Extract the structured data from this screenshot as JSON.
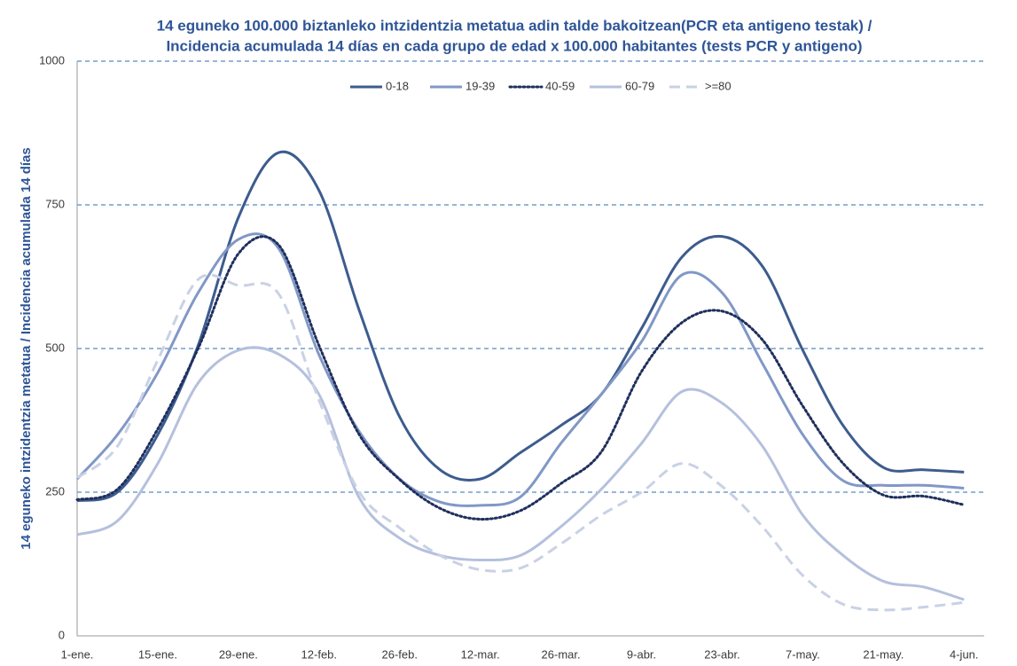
{
  "chart_data": {
    "type": "line",
    "title": "14 eguneko 100.000 biztanleko intzidentzia metatua adin talde bakoitzean(PCR eta antigeno testak) /",
    "subtitle": "Incidencia acumulada 14 días en cada grupo de edad x 100.000 habitantes (tests PCR y antigeno)",
    "y_label": "14 eguneko intzidentzia metatua / Incidencia acumulada 14 días",
    "categories": [
      "1-ene.",
      null,
      "15-ene.",
      null,
      "29-ene.",
      null,
      "12-feb.",
      null,
      "26-feb.",
      null,
      "12-mar.",
      null,
      "26-mar.",
      null,
      "9-abr.",
      null,
      "23-abr.",
      null,
      "7-may.",
      null,
      "21-may.",
      null,
      "4-jun."
    ],
    "series": [
      {
        "name": "0-18",
        "color": "#3d5c8e",
        "style": "solid",
        "values": [
          235,
          250,
          350,
          505,
          728,
          841,
          775,
          566,
          381,
          289,
          273,
          319,
          366,
          420,
          535,
          659,
          695,
          643,
          497,
          366,
          293,
          289,
          285
        ]
      },
      {
        "name": "19-39",
        "color": "#8198c6",
        "style": "solid",
        "values": [
          273,
          350,
          458,
          597,
          690,
          674,
          489,
          355,
          273,
          233,
          227,
          242,
          335,
          420,
          512,
          628,
          597,
          474,
          350,
          270,
          262,
          262,
          257
        ]
      },
      {
        "name": "40-59",
        "color": "#1f2f5c",
        "style": "dotted",
        "values": [
          237,
          255,
          360,
          500,
          665,
          680,
          505,
          350,
          272,
          222,
          203,
          218,
          265,
          320,
          460,
          545,
          565,
          515,
          400,
          300,
          245,
          243,
          228
        ]
      },
      {
        "name": "60-79",
        "color": "#b5c0dd",
        "style": "solid",
        "values": [
          176,
          200,
          300,
          440,
          497,
          490,
          420,
          240,
          170,
          140,
          132,
          140,
          190,
          255,
          335,
          425,
          405,
          330,
          210,
          140,
          95,
          85,
          63
        ]
      },
      {
        "name": ">=80",
        "color": "#c9d1e5",
        "style": "dashed",
        "values": [
          275,
          330,
          480,
          620,
          610,
          595,
          410,
          250,
          188,
          140,
          115,
          118,
          160,
          210,
          250,
          300,
          260,
          190,
          105,
          55,
          45,
          50,
          58
        ]
      }
    ],
    "ylim": [
      0,
      1000
    ],
    "yticks": [
      0,
      250,
      500,
      750,
      1000
    ],
    "grid": true,
    "legend": "top"
  }
}
